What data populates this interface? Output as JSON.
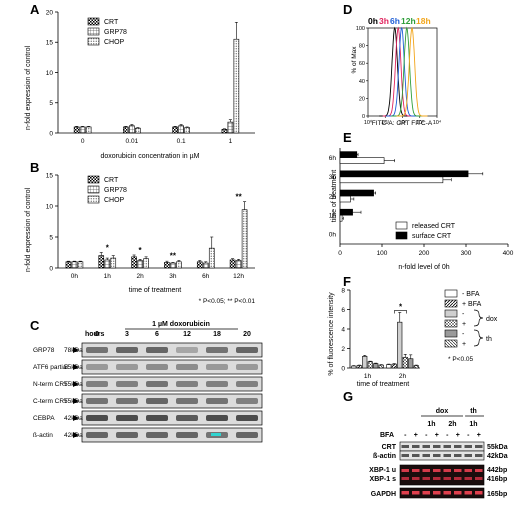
{
  "panels": {
    "A": {
      "label": "A",
      "chart_data": {
        "type": "bar",
        "categories": [
          "0",
          "0.01",
          "0.1",
          "1"
        ],
        "series": [
          {
            "name": "CRT",
            "values": [
              1.0,
              1.0,
              1.0,
              0.6
            ],
            "errors": [
              0.1,
              0.1,
              0.1,
              0.1
            ]
          },
          {
            "name": "GRP78",
            "values": [
              1.0,
              1.2,
              1.2,
              1.8
            ],
            "errors": [
              0.1,
              0.2,
              0.2,
              0.4
            ]
          },
          {
            "name": "CHOP",
            "values": [
              1.0,
              0.8,
              0.9,
              15.5
            ],
            "errors": [
              0.1,
              0.1,
              0.1,
              2.8
            ]
          }
        ],
        "xlabel": "doxorubicin concentration in µM",
        "ylabel": "n-fold expression of control",
        "ylim": [
          0,
          20
        ],
        "yticks": [
          "0",
          "5",
          "10",
          "15",
          "20"
        ]
      }
    },
    "B": {
      "label": "B",
      "chart_data": {
        "type": "bar",
        "categories": [
          "0h",
          "1h",
          "2h",
          "3h",
          "6h",
          "12h"
        ],
        "series": [
          {
            "name": "CRT",
            "values": [
              1.0,
              2.0,
              1.8,
              0.9,
              1.0,
              1.3
            ],
            "errors": [
              0.1,
              0.5,
              0.3,
              0.2,
              0.2,
              0.2
            ]
          },
          {
            "name": "GRP78",
            "values": [
              1.0,
              1.3,
              1.2,
              0.8,
              0.8,
              1.2
            ],
            "errors": [
              0.1,
              0.3,
              0.2,
              0.1,
              0.2,
              0.2
            ]
          },
          {
            "name": "CHOP",
            "values": [
              1.0,
              1.6,
              1.5,
              1.0,
              3.2,
              9.4
            ],
            "errors": [
              0.1,
              0.4,
              0.3,
              0.2,
              1.8,
              1.3
            ]
          }
        ],
        "annotations": [
          {
            "category": "1h",
            "text": "*"
          },
          {
            "category": "2h",
            "text": "*"
          },
          {
            "category": "3h",
            "text": "**"
          },
          {
            "category": "12h",
            "text": "**"
          }
        ],
        "xlabel": "time of treatment",
        "ylabel": "n-fold expression of control",
        "ylim": [
          0,
          15
        ],
        "yticks": [
          "0",
          "5",
          "10",
          "15"
        ],
        "footnote": "* P<0.05; ** P<0.01"
      }
    },
    "C": {
      "label": "C",
      "title": "1 µM doxorubicin",
      "hours_label": "hours",
      "timepoints": [
        "0",
        "3",
        "6",
        "12",
        "18",
        "20"
      ],
      "rows": [
        {
          "name": "GRP78",
          "size": "78kDa"
        },
        {
          "name": "ATF6 partial",
          "size": "55kDa"
        },
        {
          "name": "N-term  CRT",
          "size": "55kDa"
        },
        {
          "name": "C-term  CRT",
          "size": "55kDa"
        },
        {
          "name": "CEBPA",
          "size": "42kDa"
        },
        {
          "name": "ß-actin",
          "size": "42kDa"
        }
      ]
    },
    "D": {
      "label": "D",
      "chart_data": {
        "type": "line",
        "legend": [
          "0h",
          "3h",
          "6h",
          "12h",
          "18h"
        ],
        "legend_colors": [
          "#000000",
          "#e0245e",
          "#1f5fd6",
          "#2e9e3a",
          "#f2a51a"
        ],
        "peaks_log10": [
          1.55,
          1.75,
          1.95,
          2.25,
          2.55
        ],
        "xlabel": "FITC-A: CRT FITC-A",
        "ylabel": "% of Max",
        "xticks": [
          "10⁰",
          "10¹",
          "10²",
          "10³",
          "10⁴"
        ],
        "yticks": [
          "0",
          "20",
          "40",
          "60",
          "80",
          "100"
        ],
        "xlim": [
          0,
          4
        ],
        "ylim": [
          0,
          100
        ]
      }
    },
    "E": {
      "label": "E",
      "chart_data": {
        "type": "bar",
        "orientation": "horizontal",
        "categories": [
          "0h",
          "1h",
          "2h",
          "3h",
          "6h"
        ],
        "series": [
          {
            "name": "released CRT",
            "values": [
              0,
              5,
              25,
              245,
              105
            ],
            "errors": [
              0,
              3,
              8,
              20,
              25
            ],
            "color": "#ffffff"
          },
          {
            "name": "surface CRT",
            "values": [
              0,
              30,
              80,
              305,
              40
            ],
            "errors": [
              0,
              20,
              5,
              35,
              3
            ],
            "color": "#000000"
          }
        ],
        "xlabel": "n-fold level of 0h",
        "ylabel": "time of treatment",
        "xlim": [
          0,
          400
        ],
        "xticks": [
          "0",
          "100",
          "200",
          "300",
          "400"
        ]
      }
    },
    "F": {
      "label": "F",
      "chart_data": {
        "type": "bar",
        "categories": [
          "1h",
          "2h"
        ],
        "series": [
          {
            "name": "dox - BFA",
            "values": [
              0.2,
              0.35
            ],
            "errors": [
              0.05,
              0.05
            ]
          },
          {
            "name": "dox + BFA",
            "values": [
              0.25,
              0.4
            ],
            "errors": [
              0.05,
              0.05
            ]
          },
          {
            "name": "dox -",
            "values": [
              1.2,
              4.7
            ],
            "errors": [
              0.1,
              1.0
            ]
          },
          {
            "name": "dox +",
            "values": [
              0.65,
              1.1
            ],
            "errors": [
              0.05,
              0.3
            ]
          },
          {
            "name": "th -",
            "values": [
              0.45,
              0.95
            ],
            "errors": [
              0.05,
              0.4
            ]
          },
          {
            "name": "th +",
            "values": [
              0.3,
              0.25
            ],
            "errors": [
              0.05,
              0.05
            ]
          }
        ],
        "legend": {
          "minus_bfa": "-  BFA",
          "plus_bfa": "+  BFA",
          "minus": "-",
          "plus": "+",
          "dox": "dox",
          "th": "th"
        },
        "annotation": "*",
        "xlabel": "time of treatment",
        "ylabel": "% of fluorescence intensity",
        "ylim": [
          0,
          8
        ],
        "yticks": [
          "0",
          "2",
          "4",
          "6",
          "8"
        ],
        "footnote": "* P<0.05"
      }
    },
    "G": {
      "label": "G",
      "groups": [
        "dox",
        "th"
      ],
      "subgroups": [
        "1h",
        "2h",
        "1h"
      ],
      "bfa_label": "BFA",
      "bfa_signs": [
        "-",
        "+",
        "-",
        "+",
        "-",
        "+",
        "-",
        "+"
      ],
      "rows": [
        {
          "name": "CRT",
          "size": "55kDa"
        },
        {
          "name": "ß-actin",
          "size": "42kDa"
        },
        {
          "name": "XBP-1 u",
          "size": "442bp"
        },
        {
          "name": "XBP-1 s",
          "size": "416bp"
        },
        {
          "name": "GAPDH",
          "size": "165bp"
        }
      ]
    }
  }
}
